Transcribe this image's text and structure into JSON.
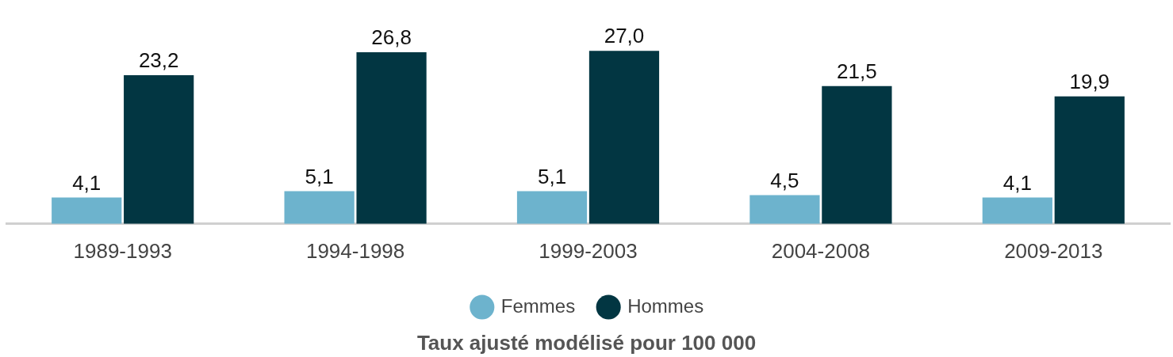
{
  "chart_data": {
    "type": "bar",
    "xlabel": "Taux ajusté modélisé pour 100 000",
    "categories": [
      "1989-1993",
      "1994-1998",
      "1999-2003",
      "2004-2008",
      "2009-2013"
    ],
    "series": [
      {
        "name": "Femmes",
        "color": "#6db3cd",
        "values": [
          4.1,
          5.1,
          5.1,
          4.5,
          4.1
        ],
        "value_labels": [
          "4,1",
          "5,1",
          "5,1",
          "4,5",
          "4,1"
        ]
      },
      {
        "name": "Hommes",
        "color": "#023642",
        "values": [
          23.2,
          26.8,
          27.0,
          21.5,
          19.9
        ],
        "value_labels": [
          "23,2",
          "26,8",
          "27,0",
          "21,5",
          "19,9"
        ]
      }
    ],
    "legend": "bottom",
    "tick_labels": "x"
  }
}
